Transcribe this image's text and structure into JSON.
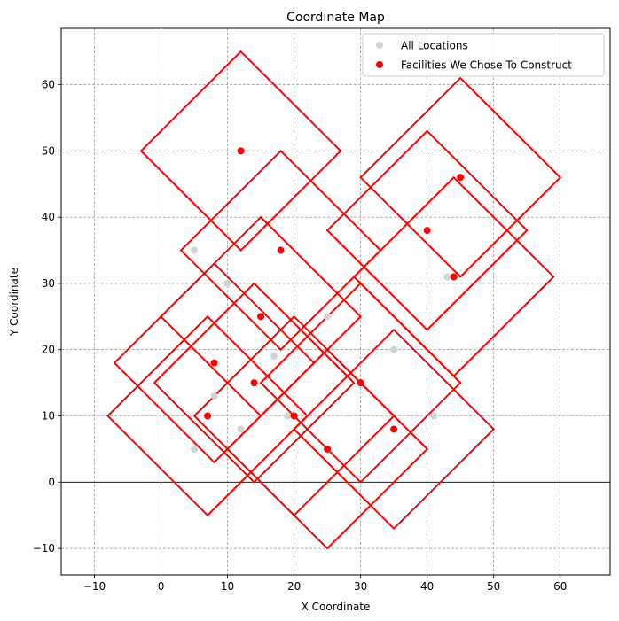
{
  "chart_data": {
    "type": "scatter",
    "title": "Coordinate Map",
    "xlabel": "X Coordinate",
    "ylabel": "Y Coordinate",
    "xlim": [
      -15,
      67.5
    ],
    "ylim": [
      -14,
      68.5
    ],
    "xticks": [
      -10,
      0,
      10,
      20,
      30,
      40,
      50,
      60
    ],
    "yticks": [
      -10,
      0,
      10,
      20,
      30,
      40,
      50,
      60
    ],
    "grid": true,
    "legend_position": "top-right",
    "series": [
      {
        "name": "All Locations",
        "color": "#d3d3d3",
        "marker": "circle",
        "points": [
          [
            5,
            35
          ],
          [
            10,
            30
          ],
          [
            17,
            19
          ],
          [
            25,
            25
          ],
          [
            8,
            13
          ],
          [
            5,
            5
          ],
          [
            12,
            8
          ],
          [
            19,
            10
          ],
          [
            35,
            20
          ],
          [
            41,
            10
          ],
          [
            43,
            31
          ],
          [
            12,
            50
          ],
          [
            18,
            35
          ],
          [
            15,
            25
          ],
          [
            8,
            18
          ],
          [
            14,
            15
          ],
          [
            7,
            10
          ],
          [
            20,
            10
          ],
          [
            25,
            5
          ],
          [
            30,
            15
          ],
          [
            35,
            8
          ],
          [
            40,
            38
          ],
          [
            44,
            31
          ],
          [
            45,
            46
          ]
        ]
      },
      {
        "name": "Facilities We Chose To Construct",
        "color": "#ff0000",
        "marker": "circle",
        "points": [
          [
            12,
            50
          ],
          [
            18,
            35
          ],
          [
            15,
            25
          ],
          [
            8,
            18
          ],
          [
            14,
            15
          ],
          [
            7,
            10
          ],
          [
            20,
            10
          ],
          [
            25,
            5
          ],
          [
            30,
            15
          ],
          [
            35,
            8
          ],
          [
            40,
            38
          ],
          [
            44,
            31
          ],
          [
            45,
            46
          ]
        ]
      }
    ],
    "coverage_regions": {
      "shape": "diamond",
      "color": "#ff0000",
      "radius": 15,
      "centers": [
        [
          12,
          50
        ],
        [
          18,
          35
        ],
        [
          15,
          25
        ],
        [
          8,
          18
        ],
        [
          14,
          15
        ],
        [
          7,
          10
        ],
        [
          20,
          10
        ],
        [
          25,
          5
        ],
        [
          30,
          15
        ],
        [
          35,
          8
        ],
        [
          40,
          38
        ],
        [
          44,
          31
        ],
        [
          45,
          46
        ]
      ]
    }
  }
}
